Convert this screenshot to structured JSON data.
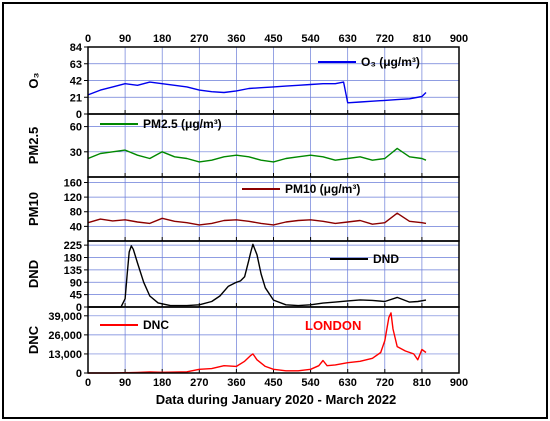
{
  "chart_data": [
    {
      "type": "line",
      "ylabel": "O₃",
      "series": [
        {
          "name": "O₃ (μg/m³)",
          "color": "#0000ee"
        }
      ],
      "ylim": [
        0,
        84
      ],
      "yticks": [
        "0",
        "21",
        "42",
        "63",
        "84"
      ],
      "xlim": [
        0,
        900
      ],
      "xticks": [
        "0",
        "90",
        "180",
        "270",
        "360",
        "450",
        "540",
        "630",
        "720",
        "810",
        "900"
      ],
      "x": [
        0,
        30,
        60,
        90,
        120,
        150,
        180,
        210,
        240,
        270,
        300,
        330,
        360,
        390,
        420,
        450,
        480,
        510,
        540,
        570,
        600,
        620,
        630,
        660,
        690,
        720,
        750,
        780,
        810,
        820
      ],
      "y": [
        24,
        30,
        34,
        38,
        36,
        40,
        38,
        36,
        34,
        30,
        28,
        27,
        29,
        32,
        33,
        34,
        35,
        36,
        37,
        38,
        38,
        40,
        14,
        15,
        16,
        17,
        18,
        19,
        22,
        27
      ],
      "grid": true,
      "legend": "top-right"
    },
    {
      "type": "line",
      "ylabel": "PM2.5",
      "series": [
        {
          "name": "PM2.5 (μg/m³)",
          "color": "#008800"
        }
      ],
      "ylim": [
        0,
        75
      ],
      "yticks": [
        "30",
        "60"
      ],
      "xlim": [
        0,
        900
      ],
      "x": [
        0,
        30,
        60,
        90,
        120,
        150,
        180,
        210,
        240,
        270,
        300,
        330,
        360,
        390,
        420,
        450,
        480,
        510,
        540,
        570,
        600,
        630,
        660,
        690,
        720,
        750,
        780,
        810,
        820
      ],
      "y": [
        22,
        28,
        30,
        32,
        26,
        22,
        30,
        24,
        22,
        18,
        20,
        24,
        26,
        24,
        20,
        18,
        22,
        24,
        26,
        24,
        20,
        22,
        24,
        20,
        22,
        34,
        24,
        22,
        20
      ],
      "grid": true,
      "legend": "top-left"
    },
    {
      "type": "line",
      "ylabel": "PM10",
      "series": [
        {
          "name": "PM10 (μg/m³)",
          "color": "#8b0000"
        }
      ],
      "ylim": [
        0,
        175
      ],
      "yticks": [
        "40",
        "80",
        "120",
        "160"
      ],
      "xlim": [
        0,
        900
      ],
      "x": [
        0,
        30,
        60,
        90,
        120,
        150,
        180,
        210,
        240,
        270,
        300,
        330,
        360,
        390,
        420,
        450,
        480,
        510,
        540,
        570,
        600,
        630,
        660,
        690,
        720,
        750,
        780,
        810,
        820
      ],
      "y": [
        50,
        60,
        55,
        58,
        52,
        48,
        62,
        54,
        50,
        44,
        48,
        56,
        58,
        54,
        48,
        44,
        52,
        56,
        58,
        54,
        48,
        52,
        56,
        46,
        50,
        76,
        54,
        50,
        48
      ],
      "grid": true,
      "legend": "top-right"
    },
    {
      "type": "line",
      "ylabel": "DND",
      "series": [
        {
          "name": "DND",
          "color": "#000000"
        }
      ],
      "ylim": [
        0,
        240
      ],
      "yticks": [
        "0",
        "45",
        "90",
        "135",
        "180",
        "225"
      ],
      "xlim": [
        0,
        900
      ],
      "x": [
        0,
        80,
        90,
        95,
        100,
        105,
        110,
        120,
        135,
        150,
        170,
        200,
        240,
        270,
        300,
        320,
        340,
        360,
        370,
        380,
        390,
        395,
        400,
        410,
        420,
        430,
        450,
        480,
        510,
        540,
        570,
        600,
        630,
        660,
        690,
        720,
        750,
        780,
        800,
        820
      ],
      "y": [
        0,
        0,
        30,
        120,
        200,
        222,
        210,
        160,
        90,
        40,
        15,
        5,
        5,
        8,
        20,
        40,
        75,
        90,
        95,
        110,
        170,
        200,
        228,
        190,
        120,
        70,
        25,
        8,
        5,
        8,
        14,
        18,
        22,
        26,
        24,
        20,
        35,
        18,
        20,
        25
      ],
      "grid": true,
      "legend": "top-right"
    },
    {
      "type": "line",
      "ylabel": "DNC",
      "series": [
        {
          "name": "DNC",
          "color": "#ff0000"
        }
      ],
      "ylim": [
        0,
        45000
      ],
      "yticks": [
        "0",
        "13,000",
        "26,000",
        "39,000"
      ],
      "xlabel": "Data during January 2020 - March 2022",
      "annotation": "LONDON",
      "annotation_color": "#ff0000",
      "xlim": [
        0,
        900
      ],
      "xticks": [
        "0",
        "90",
        "180",
        "270",
        "360",
        "450",
        "540",
        "630",
        "720",
        "810",
        "900"
      ],
      "x": [
        0,
        60,
        90,
        120,
        150,
        180,
        210,
        240,
        270,
        300,
        330,
        360,
        380,
        395,
        400,
        410,
        430,
        450,
        480,
        510,
        540,
        560,
        570,
        580,
        600,
        630,
        660,
        690,
        710,
        720,
        730,
        735,
        740,
        750,
        770,
        790,
        800,
        810,
        820
      ],
      "y": [
        0,
        0,
        200,
        400,
        700,
        500,
        600,
        800,
        2500,
        3000,
        5000,
        4500,
        8000,
        12000,
        13000,
        9000,
        4500,
        2500,
        1500,
        1500,
        2500,
        5000,
        8500,
        5000,
        5500,
        7000,
        8000,
        10000,
        14000,
        22000,
        38000,
        41000,
        30000,
        18000,
        15000,
        13000,
        9000,
        16000,
        14000
      ],
      "grid": true,
      "legend": "top-left"
    }
  ]
}
